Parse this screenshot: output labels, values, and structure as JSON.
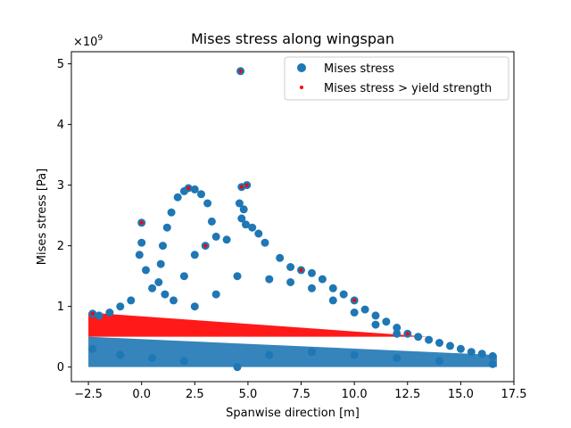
{
  "chart_data": {
    "type": "scatter",
    "title": "Mises stress along wingspan",
    "xlabel": "Spanwise direction [m]",
    "ylabel": "Mises stress [Pa]",
    "y_offset_label": "×10^9",
    "y_offset_base": "×10",
    "y_offset_exp": "9",
    "xlim": [
      -3.3,
      17.5
    ],
    "ylim": [
      -0.24,
      5.2
    ],
    "xticks": [
      -2.5,
      0.0,
      2.5,
      5.0,
      7.5,
      10.0,
      12.5,
      15.0,
      17.5
    ],
    "xtick_labels": [
      "−2.5",
      "0.0",
      "2.5",
      "5.0",
      "7.5",
      "10.0",
      "12.5",
      "15.0",
      "17.5"
    ],
    "yticks": [
      0,
      1,
      2,
      3,
      4,
      5
    ],
    "ytick_labels": [
      "0",
      "1",
      "2",
      "3",
      "4",
      "5"
    ],
    "y_units_scale": 1000000000,
    "grid": false,
    "legend_position": "top-right",
    "series": [
      {
        "name": "Mises stress",
        "color": "#1f77b4",
        "marker": "circle-large",
        "points": [
          [
            4.65,
            4.88
          ],
          [
            4.7,
            2.97
          ],
          [
            4.95,
            3.0
          ],
          [
            4.6,
            2.7
          ],
          [
            4.8,
            2.6
          ],
          [
            4.7,
            2.45
          ],
          [
            4.9,
            2.35
          ],
          [
            5.2,
            2.3
          ],
          [
            5.5,
            2.2
          ],
          [
            5.8,
            2.05
          ],
          [
            2.0,
            2.9
          ],
          [
            2.2,
            2.95
          ],
          [
            2.5,
            2.93
          ],
          [
            2.8,
            2.85
          ],
          [
            3.1,
            2.7
          ],
          [
            1.7,
            2.8
          ],
          [
            1.4,
            2.55
          ],
          [
            1.2,
            2.3
          ],
          [
            1.0,
            2.0
          ],
          [
            3.3,
            2.4
          ],
          [
            0.0,
            2.38
          ],
          [
            0.0,
            2.05
          ],
          [
            -0.1,
            1.85
          ],
          [
            0.2,
            1.6
          ],
          [
            0.9,
            1.7
          ],
          [
            0.8,
            1.4
          ],
          [
            1.1,
            1.2
          ],
          [
            2.0,
            1.5
          ],
          [
            2.5,
            1.85
          ],
          [
            3.0,
            2.0
          ],
          [
            3.5,
            2.15
          ],
          [
            4.0,
            2.1
          ],
          [
            6.5,
            1.8
          ],
          [
            7.0,
            1.65
          ],
          [
            7.5,
            1.6
          ],
          [
            8.0,
            1.55
          ],
          [
            8.5,
            1.45
          ],
          [
            9.0,
            1.3
          ],
          [
            9.5,
            1.2
          ],
          [
            10.0,
            1.1
          ],
          [
            10.5,
            0.95
          ],
          [
            11.0,
            0.85
          ],
          [
            11.5,
            0.75
          ],
          [
            12.0,
            0.65
          ],
          [
            12.5,
            0.55
          ],
          [
            13.0,
            0.5
          ],
          [
            13.5,
            0.45
          ],
          [
            14.0,
            0.4
          ],
          [
            14.5,
            0.35
          ],
          [
            15.0,
            0.3
          ],
          [
            15.5,
            0.25
          ],
          [
            16.0,
            0.22
          ],
          [
            16.5,
            0.18
          ],
          [
            6.0,
            1.45
          ],
          [
            7.0,
            1.4
          ],
          [
            8.0,
            1.3
          ],
          [
            9.0,
            1.1
          ],
          [
            10.0,
            0.9
          ],
          [
            11.0,
            0.7
          ],
          [
            12.0,
            0.55
          ],
          [
            -2.3,
            0.88
          ],
          [
            -2.0,
            0.85
          ],
          [
            -1.5,
            0.9
          ],
          [
            -1.0,
            1.0
          ],
          [
            -0.5,
            1.1
          ],
          [
            0.5,
            1.3
          ],
          [
            1.5,
            1.1
          ],
          [
            2.5,
            1.0
          ],
          [
            3.5,
            1.2
          ],
          [
            4.5,
            1.5
          ],
          [
            -2.3,
            0.3
          ],
          [
            -1.0,
            0.2
          ],
          [
            0.5,
            0.15
          ],
          [
            2.0,
            0.1
          ],
          [
            4.5,
            0.0
          ],
          [
            6.0,
            0.2
          ],
          [
            8.0,
            0.25
          ],
          [
            10.0,
            0.2
          ],
          [
            12.0,
            0.15
          ],
          [
            14.0,
            0.1
          ],
          [
            16.5,
            0.05
          ]
        ]
      },
      {
        "name": "Mises stress > yield strength",
        "color": "#ff0000",
        "marker": "dot-small",
        "points": [
          [
            4.65,
            4.88
          ],
          [
            4.7,
            2.97
          ],
          [
            4.95,
            3.0
          ],
          [
            2.2,
            2.95
          ],
          [
            0.0,
            2.38
          ],
          [
            3.0,
            2.0
          ],
          [
            7.5,
            1.6
          ],
          [
            10.0,
            1.1
          ],
          [
            12.5,
            0.55
          ],
          [
            -2.3,
            0.88
          ]
        ]
      }
    ],
    "regions": [
      {
        "series": 0,
        "x": [
          -2.5,
          16.7
        ],
        "y_low": [
          0.0,
          0.0
        ],
        "y_high": [
          0.5,
          0.2
        ]
      },
      {
        "series": 1,
        "x": [
          -2.5,
          13.5
        ],
        "y_low": [
          0.5,
          0.5
        ],
        "y_high": [
          0.9,
          0.5
        ]
      }
    ]
  }
}
